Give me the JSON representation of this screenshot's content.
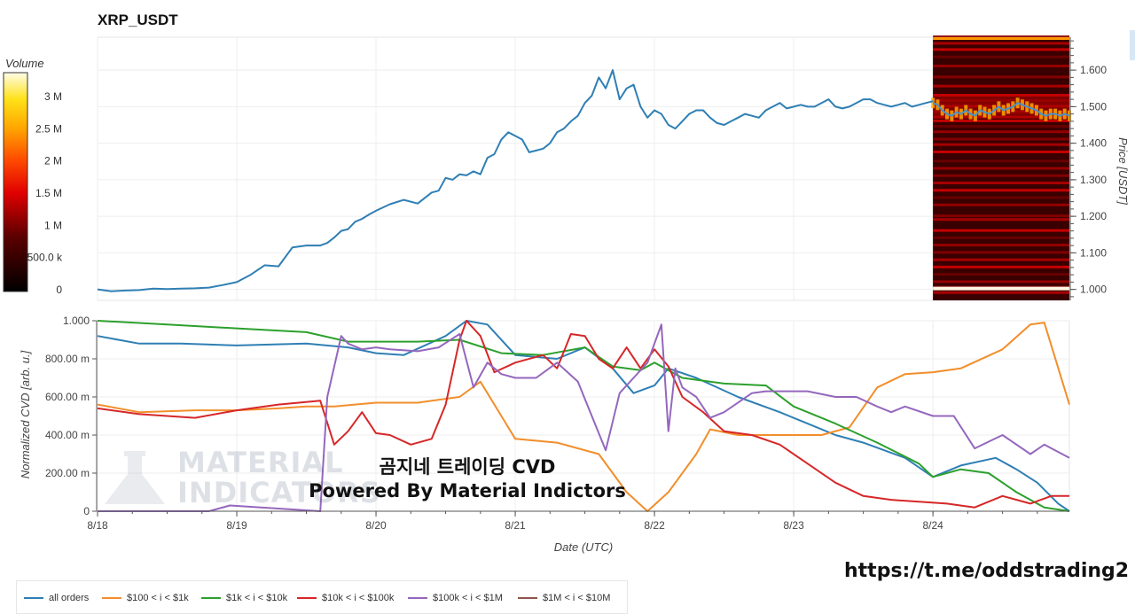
{
  "title": "XRP_USDT",
  "overlay_title": "곰지네 트레이딩 CVD",
  "overlay_subtitle": "Powered By Material Indictors",
  "telegram_link": "https://t.me/oddstrading2",
  "watermark_lines": [
    "MATERIAL",
    "INDICATORS"
  ],
  "chart_data": [
    {
      "type": "line",
      "name": "price",
      "y2label": "Price [USDT]",
      "ylim": [
        0.97,
        1.69
      ],
      "yticks": [
        "1.000",
        "1.100",
        "1.200",
        "1.300",
        "1.400",
        "1.500",
        "1.600"
      ],
      "ytick_values": [
        1.0,
        1.1,
        1.2,
        1.3,
        1.4,
        1.5,
        1.6
      ],
      "color": "#2f7fb4",
      "x": [
        18.0,
        18.1,
        18.2,
        18.3,
        18.4,
        18.5,
        18.6,
        18.7,
        18.8,
        18.9,
        19.0,
        19.1,
        19.2,
        19.3,
        19.4,
        19.5,
        19.6,
        19.65,
        19.7,
        19.75,
        19.8,
        19.85,
        19.9,
        19.95,
        20.0,
        20.1,
        20.2,
        20.3,
        20.4,
        20.45,
        20.5,
        20.55,
        20.6,
        20.65,
        20.7,
        20.75,
        20.8,
        20.85,
        20.9,
        20.95,
        21.0,
        21.05,
        21.1,
        21.15,
        21.2,
        21.25,
        21.3,
        21.35,
        21.4,
        21.45,
        21.5,
        21.55,
        21.6,
        21.65,
        21.7,
        21.75,
        21.8,
        21.85,
        21.9,
        21.95,
        22.0,
        22.05,
        22.1,
        22.15,
        22.2,
        22.25,
        22.3,
        22.35,
        22.4,
        22.45,
        22.5,
        22.55,
        22.6,
        22.65,
        22.7,
        22.75,
        22.8,
        22.85,
        22.9,
        22.95,
        23.0,
        23.05,
        23.1,
        23.15,
        23.2,
        23.25,
        23.3,
        23.35,
        23.4,
        23.45,
        23.5,
        23.55,
        23.6,
        23.65,
        23.7,
        23.75,
        23.8,
        23.85,
        23.9,
        23.95,
        24.0
      ],
      "y": [
        1.0,
        0.995,
        0.997,
        0.998,
        1.002,
        1.001,
        1.002,
        1.003,
        1.005,
        1.012,
        1.02,
        1.04,
        1.066,
        1.063,
        1.115,
        1.12,
        1.12,
        1.127,
        1.142,
        1.16,
        1.165,
        1.185,
        1.193,
        1.205,
        1.215,
        1.233,
        1.245,
        1.235,
        1.265,
        1.27,
        1.305,
        1.3,
        1.315,
        1.312,
        1.323,
        1.315,
        1.36,
        1.37,
        1.41,
        1.43,
        1.42,
        1.41,
        1.375,
        1.38,
        1.385,
        1.4,
        1.43,
        1.44,
        1.46,
        1.475,
        1.51,
        1.53,
        1.58,
        1.55,
        1.6,
        1.52,
        1.55,
        1.56,
        1.5,
        1.47,
        1.49,
        1.48,
        1.45,
        1.44,
        1.46,
        1.48,
        1.49,
        1.49,
        1.47,
        1.455,
        1.45,
        1.46,
        1.47,
        1.48,
        1.475,
        1.47,
        1.49,
        1.5,
        1.51,
        1.495,
        1.5,
        1.505,
        1.5,
        1.5,
        1.51,
        1.52,
        1.5,
        1.495,
        1.5,
        1.51,
        1.52,
        1.52,
        1.51,
        1.505,
        1.5,
        1.505,
        1.51,
        1.5,
        1.505,
        1.51,
        1.515
      ]
    },
    {
      "type": "heatmap",
      "name": "orderbook-volume",
      "colorbar_label": "Volume",
      "colorbar_ticks": [
        "3 M",
        "2.5 M",
        "2 M",
        "1.5 M",
        "1 M",
        "500.0 k",
        "0"
      ],
      "colorbar_tick_values": [
        3000000,
        2500000,
        2000000,
        1500000,
        1000000,
        500000,
        0
      ],
      "colorbar_range": [
        0,
        3400000
      ],
      "price_overlay": [
        1.51,
        1.505,
        1.49,
        1.48,
        1.475,
        1.485,
        1.48,
        1.49,
        1.48,
        1.475,
        1.49,
        1.485,
        1.48,
        1.49,
        1.5,
        1.49,
        1.495,
        1.5,
        1.51,
        1.505,
        1.5,
        1.495,
        1.49,
        1.48,
        1.475,
        1.48,
        1.48,
        1.475,
        1.48,
        1.475
      ],
      "bright_levels": [
        1.69,
        1.672,
        1.655,
        1.635,
        1.61,
        1.58,
        1.555,
        1.53,
        1.515,
        1.5,
        1.485,
        1.47,
        1.46,
        1.445,
        1.43,
        1.41,
        1.395,
        1.375,
        1.35,
        1.33,
        1.31,
        1.29,
        1.27,
        1.25,
        1.23,
        1.2,
        1.19,
        1.16,
        1.14,
        1.12,
        1.1,
        1.08,
        1.06,
        1.04,
        1.02,
        1.005,
        0.99
      ]
    },
    {
      "type": "line",
      "name": "cvd",
      "xlabel": "Date (UTC)",
      "ylabel": "Normalized CVD [arb. u.]",
      "ylim": [
        0,
        1.0
      ],
      "yticks": [
        "0",
        "200.00 m",
        "400.00 m",
        "600.00 m",
        "800.00 m",
        "1.000"
      ],
      "ytick_values": [
        0,
        0.2,
        0.4,
        0.6,
        0.8,
        1.0
      ],
      "categories": [
        "8/18",
        "8/19",
        "8/20",
        "8/21",
        "8/22",
        "8/23",
        "8/24"
      ],
      "category_values": [
        18,
        19,
        20,
        21,
        22,
        23,
        24
      ],
      "xlim": [
        18,
        24.98
      ],
      "series": [
        {
          "name": "all orders",
          "color": "#2f7fb4",
          "x": [
            18,
            18.3,
            18.6,
            19,
            19.5,
            19.8,
            20,
            20.2,
            20.5,
            20.65,
            20.8,
            21,
            21.3,
            21.5,
            21.7,
            21.85,
            22,
            22.1,
            22.3,
            22.6,
            22.9,
            23.1,
            23.3,
            23.5,
            23.8,
            24,
            24.2,
            24.45,
            24.6,
            24.75,
            24.9,
            24.98
          ],
          "y": [
            0.92,
            0.88,
            0.88,
            0.87,
            0.88,
            0.86,
            0.83,
            0.82,
            0.92,
            1.0,
            0.98,
            0.82,
            0.8,
            0.86,
            0.75,
            0.62,
            0.66,
            0.75,
            0.7,
            0.6,
            0.52,
            0.46,
            0.4,
            0.36,
            0.28,
            0.18,
            0.24,
            0.28,
            0.22,
            0.15,
            0.04,
            0.0
          ]
        },
        {
          "name": "$100 < i < $1k",
          "color": "#f28e2b",
          "x": [
            18,
            18.3,
            18.7,
            19,
            19.3,
            19.5,
            19.7,
            20,
            20.3,
            20.6,
            20.75,
            20.9,
            21,
            21.3,
            21.6,
            21.8,
            21.95,
            22.1,
            22.3,
            22.4,
            22.6,
            22.9,
            23.2,
            23.4,
            23.6,
            23.8,
            24,
            24.2,
            24.5,
            24.7,
            24.8,
            24.98
          ],
          "y": [
            0.56,
            0.52,
            0.53,
            0.53,
            0.54,
            0.55,
            0.55,
            0.57,
            0.57,
            0.6,
            0.68,
            0.5,
            0.38,
            0.36,
            0.3,
            0.1,
            0.0,
            0.1,
            0.3,
            0.43,
            0.4,
            0.4,
            0.4,
            0.44,
            0.65,
            0.72,
            0.73,
            0.75,
            0.85,
            0.98,
            0.99,
            0.56
          ]
        },
        {
          "name": "$1k < i < $10k",
          "color": "#2ca02c",
          "x": [
            18,
            18.5,
            19,
            19.5,
            19.8,
            20.3,
            20.6,
            20.9,
            21.2,
            21.5,
            21.7,
            21.9,
            22,
            22.2,
            22.5,
            22.8,
            23,
            23.3,
            23.6,
            23.9,
            24,
            24.2,
            24.4,
            24.6,
            24.8,
            24.98
          ],
          "y": [
            1.0,
            0.98,
            0.96,
            0.94,
            0.89,
            0.89,
            0.9,
            0.83,
            0.82,
            0.86,
            0.76,
            0.74,
            0.78,
            0.7,
            0.67,
            0.66,
            0.55,
            0.46,
            0.36,
            0.25,
            0.18,
            0.22,
            0.2,
            0.1,
            0.02,
            0.0
          ]
        },
        {
          "name": "$10k < i < $100k",
          "color": "#d62728",
          "x": [
            18,
            18.3,
            18.7,
            19,
            19.3,
            19.6,
            19.7,
            19.8,
            19.9,
            20,
            20.1,
            20.25,
            20.4,
            20.5,
            20.6,
            20.65,
            20.75,
            20.85,
            21,
            21.2,
            21.3,
            21.4,
            21.5,
            21.6,
            21.7,
            21.8,
            21.9,
            22,
            22.1,
            22.2,
            22.35,
            22.5,
            22.7,
            22.9,
            23.1,
            23.3,
            23.5,
            23.7,
            23.9,
            24.1,
            24.3,
            24.5,
            24.7,
            24.85,
            24.98
          ],
          "y": [
            0.54,
            0.51,
            0.49,
            0.53,
            0.56,
            0.58,
            0.35,
            0.42,
            0.52,
            0.41,
            0.4,
            0.35,
            0.38,
            0.56,
            0.9,
            1.0,
            0.92,
            0.73,
            0.78,
            0.82,
            0.75,
            0.93,
            0.92,
            0.8,
            0.75,
            0.86,
            0.75,
            0.85,
            0.76,
            0.6,
            0.52,
            0.42,
            0.4,
            0.35,
            0.25,
            0.15,
            0.08,
            0.06,
            0.05,
            0.04,
            0.02,
            0.08,
            0.04,
            0.08,
            0.08
          ]
        },
        {
          "name": "$100k < i < $1M",
          "color": "#9467bd",
          "x": [
            18,
            18.8,
            18.95,
            19.6,
            19.65,
            19.75,
            19.8,
            19.9,
            20,
            20.1,
            20.3,
            20.45,
            20.6,
            20.7,
            20.8,
            20.9,
            21,
            21.15,
            21.3,
            21.45,
            21.55,
            21.65,
            21.75,
            21.85,
            21.95,
            22.05,
            22.1,
            22.15,
            22.2,
            22.3,
            22.4,
            22.5,
            22.7,
            22.8,
            22.9,
            23.1,
            23.3,
            23.45,
            23.6,
            23.7,
            23.8,
            24,
            24.15,
            24.3,
            24.5,
            24.7,
            24.8,
            24.98
          ],
          "y": [
            0.0,
            0.0,
            0.03,
            0.0,
            0.6,
            0.92,
            0.88,
            0.85,
            0.86,
            0.85,
            0.84,
            0.86,
            0.93,
            0.65,
            0.78,
            0.72,
            0.7,
            0.7,
            0.78,
            0.68,
            0.5,
            0.32,
            0.62,
            0.7,
            0.78,
            0.98,
            0.42,
            0.75,
            0.65,
            0.6,
            0.49,
            0.52,
            0.62,
            0.63,
            0.63,
            0.63,
            0.6,
            0.6,
            0.55,
            0.52,
            0.55,
            0.5,
            0.5,
            0.33,
            0.4,
            0.3,
            0.35,
            0.28
          ]
        },
        {
          "name": "$1M < i < $10M",
          "color": "#8c564b",
          "x": [],
          "y": []
        }
      ]
    }
  ]
}
